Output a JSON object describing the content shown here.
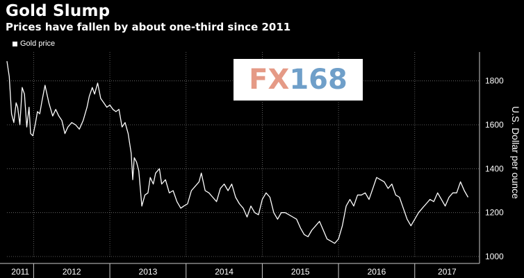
{
  "header": {
    "title": "Gold Slump",
    "subtitle": "Prices have fallen by about one-third since 2011"
  },
  "legend": {
    "label": "Gold price"
  },
  "watermark": {
    "fx": "FX",
    "num": "168"
  },
  "colors": {
    "background": "#000000",
    "line": "#ffffff",
    "grid": "#777777"
  },
  "chart_data": {
    "type": "line",
    "title": "Gold Slump",
    "subtitle": "Prices have fallen by about one-third since 2011",
    "ylabel": "U.S. Dollar per ounce",
    "ylim": [
      1000,
      1900
    ],
    "xlim": [
      2011.65,
      2017.85
    ],
    "y_ticks": [
      1000,
      1200,
      1400,
      1600,
      1800
    ],
    "x_tick_labels": [
      {
        "label": "2011",
        "year": 2011.65
      },
      {
        "label": "2012",
        "year": 2012
      },
      {
        "label": "2013",
        "year": 2013
      },
      {
        "label": "2014",
        "year": 2014
      },
      {
        "label": "2015",
        "year": 2015
      },
      {
        "label": "2016",
        "year": 2016
      },
      {
        "label": "2017",
        "year": 2017
      }
    ],
    "year_boundaries": [
      2012,
      2013,
      2014,
      2015,
      2016,
      2017
    ],
    "grid": true,
    "legend_position": "top-left",
    "series": [
      {
        "name": "Gold price",
        "x": [
          2011.65,
          2011.68,
          2011.71,
          2011.74,
          2011.77,
          2011.79,
          2011.82,
          2011.85,
          2011.88,
          2011.91,
          2011.94,
          2011.96,
          2011.99,
          2012.02,
          2012.05,
          2012.08,
          2012.11,
          2012.15,
          2012.2,
          2012.25,
          2012.29,
          2012.33,
          2012.37,
          2012.41,
          2012.45,
          2012.5,
          2012.55,
          2012.6,
          2012.65,
          2012.7,
          2012.73,
          2012.77,
          2012.8,
          2012.84,
          2012.88,
          2012.92,
          2012.96,
          2013.0,
          2013.04,
          2013.08,
          2013.12,
          2013.16,
          2013.2,
          2013.24,
          2013.28,
          2013.3,
          2013.32,
          2013.35,
          2013.38,
          2013.42,
          2013.46,
          2013.5,
          2013.53,
          2013.57,
          2013.6,
          2013.65,
          2013.68,
          2013.73,
          2013.78,
          2013.83,
          2013.88,
          2013.93,
          2013.97,
          2014.02,
          2014.07,
          2014.12,
          2014.17,
          2014.2,
          2014.25,
          2014.3,
          2014.35,
          2014.4,
          2014.45,
          2014.5,
          2014.55,
          2014.6,
          2014.65,
          2014.7,
          2014.75,
          2014.8,
          2014.85,
          2014.9,
          2014.95,
          2015.0,
          2015.05,
          2015.1,
          2015.15,
          2015.2,
          2015.25,
          2015.3,
          2015.35,
          2015.4,
          2015.45,
          2015.5,
          2015.55,
          2015.6,
          2015.65,
          2015.7,
          2015.75,
          2015.8,
          2015.85,
          2015.9,
          2015.95,
          2016.0,
          2016.05,
          2016.1,
          2016.15,
          2016.2,
          2016.25,
          2016.3,
          2016.35,
          2016.4,
          2016.45,
          2016.5,
          2016.55,
          2016.6,
          2016.65,
          2016.7,
          2016.75,
          2016.8,
          2016.85,
          2016.9,
          2016.95,
          2017.0,
          2017.05,
          2017.1,
          2017.15,
          2017.2,
          2017.25,
          2017.3,
          2017.35,
          2017.4,
          2017.45,
          2017.5,
          2017.55,
          2017.6,
          2017.65,
          2017.7
        ],
        "y": [
          1890,
          1820,
          1650,
          1610,
          1700,
          1680,
          1600,
          1770,
          1740,
          1590,
          1680,
          1560,
          1550,
          1600,
          1660,
          1650,
          1710,
          1780,
          1700,
          1640,
          1670,
          1640,
          1620,
          1560,
          1590,
          1610,
          1600,
          1580,
          1620,
          1680,
          1730,
          1770,
          1740,
          1790,
          1720,
          1700,
          1680,
          1690,
          1670,
          1660,
          1670,
          1590,
          1610,
          1560,
          1470,
          1350,
          1450,
          1430,
          1390,
          1230,
          1280,
          1290,
          1360,
          1330,
          1380,
          1400,
          1330,
          1350,
          1290,
          1300,
          1250,
          1220,
          1230,
          1240,
          1300,
          1320,
          1340,
          1380,
          1300,
          1290,
          1270,
          1250,
          1310,
          1330,
          1300,
          1330,
          1270,
          1240,
          1220,
          1180,
          1230,
          1200,
          1190,
          1260,
          1290,
          1270,
          1200,
          1170,
          1200,
          1200,
          1190,
          1180,
          1170,
          1130,
          1100,
          1090,
          1120,
          1140,
          1160,
          1120,
          1080,
          1070,
          1060,
          1080,
          1140,
          1230,
          1260,
          1230,
          1280,
          1280,
          1290,
          1260,
          1310,
          1360,
          1350,
          1340,
          1310,
          1330,
          1280,
          1270,
          1220,
          1170,
          1140,
          1170,
          1200,
          1220,
          1240,
          1260,
          1250,
          1290,
          1260,
          1230,
          1270,
          1290,
          1290,
          1340,
          1300,
          1270
        ]
      }
    ]
  }
}
